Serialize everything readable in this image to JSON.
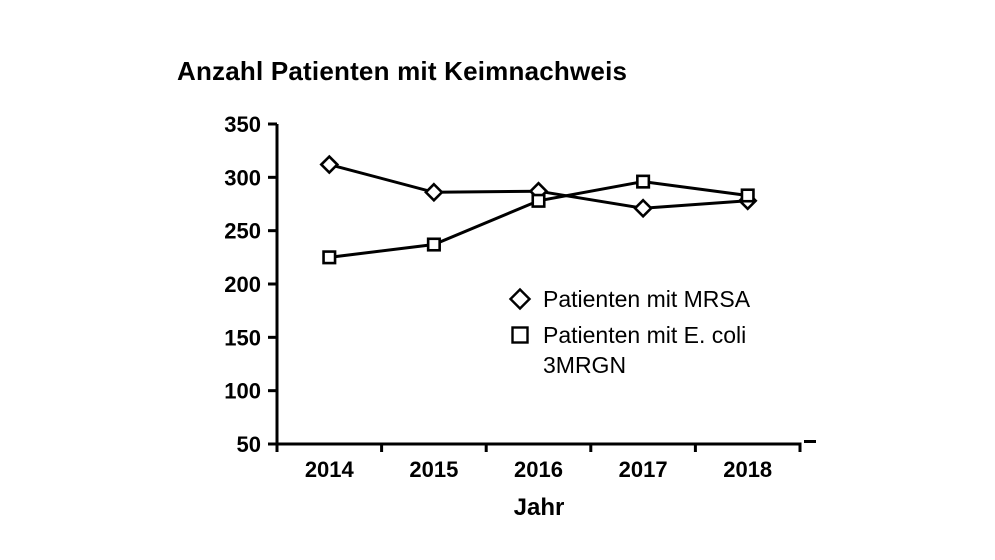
{
  "chart_data": {
    "type": "line",
    "title": "Anzahl Patienten mit Keimnachweis",
    "xlabel": "Jahr",
    "ylabel": "",
    "categories": [
      "2014",
      "2015",
      "2016",
      "2017",
      "2018"
    ],
    "series": [
      {
        "name": "Patienten mit MRSA",
        "legend_lines": [
          "Patienten mit MRSA"
        ],
        "marker": "diamond",
        "values": [
          312,
          286,
          287,
          271,
          278
        ]
      },
      {
        "name": "Patienten mit E. coli 3MRGN",
        "legend_lines": [
          "Patienten mit E. coli",
          "3MRGN"
        ],
        "marker": "square",
        "values": [
          225,
          237,
          278,
          296,
          283
        ]
      }
    ],
    "ylim": [
      50,
      350
    ],
    "yticks": [
      350,
      300,
      250,
      200,
      150,
      100,
      50
    ],
    "grid": false,
    "legend_position": "inside-right",
    "colors": {
      "line": "#000000",
      "marker_fill": "#ffffff",
      "text": "#000000",
      "background": "#ffffff"
    }
  }
}
